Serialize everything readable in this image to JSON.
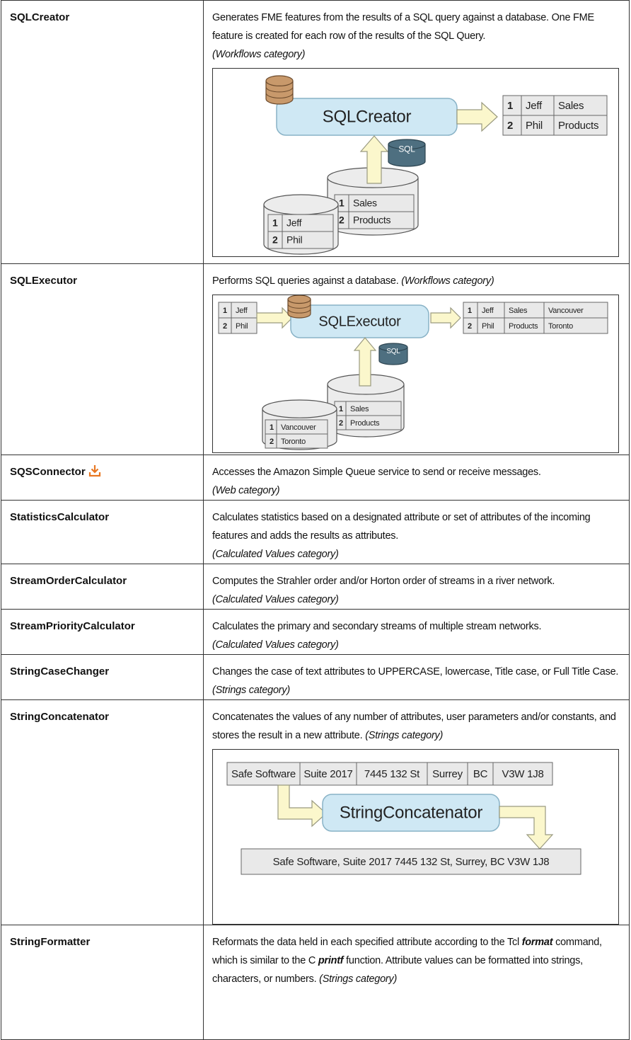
{
  "table": {
    "rows": [
      {
        "name": "SQLCreator",
        "description": "Generates FME features from the results of a SQL query against a database. One FME feature is created for each row of the results of the SQL Query.",
        "category": "(Workflows category)",
        "diagram": {
          "transformer": "SQLCreator",
          "sql": "SQL",
          "output": [
            [
              "1",
              "Jeff",
              "Sales"
            ],
            [
              "2",
              "Phil",
              "Products"
            ]
          ],
          "table_a": [
            [
              "1",
              "Sales"
            ],
            [
              "2",
              "Products"
            ]
          ],
          "table_b": [
            [
              "1",
              "Jeff"
            ],
            [
              "2",
              "Phil"
            ]
          ]
        }
      },
      {
        "name": "SQLExecutor",
        "description": "Performs SQL queries against a database.",
        "category": "(Workflows category)",
        "diagram": {
          "transformer": "SQLExecutor",
          "sql": "SQL",
          "input": [
            [
              "1",
              "Jeff"
            ],
            [
              "2",
              "Phil"
            ]
          ],
          "output": [
            [
              "1",
              "Jeff",
              "Sales",
              "Vancouver"
            ],
            [
              "2",
              "Phil",
              "Products",
              "Toronto"
            ]
          ],
          "table_a": [
            [
              "1",
              "Sales"
            ],
            [
              "2",
              "Products"
            ]
          ],
          "table_b": [
            [
              "1",
              "Vancouver"
            ],
            [
              "2",
              "Toronto"
            ]
          ]
        }
      },
      {
        "name": "SQSConnector",
        "description": "Accesses the Amazon Simple Queue service to send or receive messages.",
        "category": "(Web category)"
      },
      {
        "name": "StatisticsCalculator",
        "description": "Calculates statistics based on a designated attribute or set of attributes of the incoming features and adds the results as attributes.",
        "category": "(Calculated Values category)"
      },
      {
        "name": "StreamOrderCalculator",
        "description": "Computes the Strahler order and/or Horton order of streams in a river network.",
        "category": "(Calculated Values category)"
      },
      {
        "name": "StreamPriorityCalculator",
        "description": "Calculates the primary and secondary streams of multiple stream networks.",
        "category": "(Calculated Values category)"
      },
      {
        "name": "StringCaseChanger",
        "description": "Changes the case of text attributes to UPPERCASE, lowercase, Title case, or Full Title Case.",
        "category": "(Strings category)"
      },
      {
        "name": "StringConcatenator",
        "description": "Concatenates the values of any number of attributes, user parameters and/or constants, and stores the result in a new attribute.",
        "category": "(Strings category)",
        "diagram": {
          "transformer": "StringConcatenator",
          "input": [
            "Safe Software",
            "Suite 2017",
            "7445 132 St",
            "Surrey",
            "BC",
            "V3W 1J8"
          ],
          "output": "Safe Software, Suite 2017 7445 132 St, Surrey, BC V3W 1J8"
        }
      },
      {
        "name": "StringFormatter",
        "description_parts": [
          "Reformats the data held in each specified attribute according to the Tcl",
          "format",
          "command, which is similar to the C",
          "printf",
          "function. Attribute values can be formatted into strings, characters, or numbers."
        ],
        "category": "(Strings category)"
      }
    ]
  }
}
